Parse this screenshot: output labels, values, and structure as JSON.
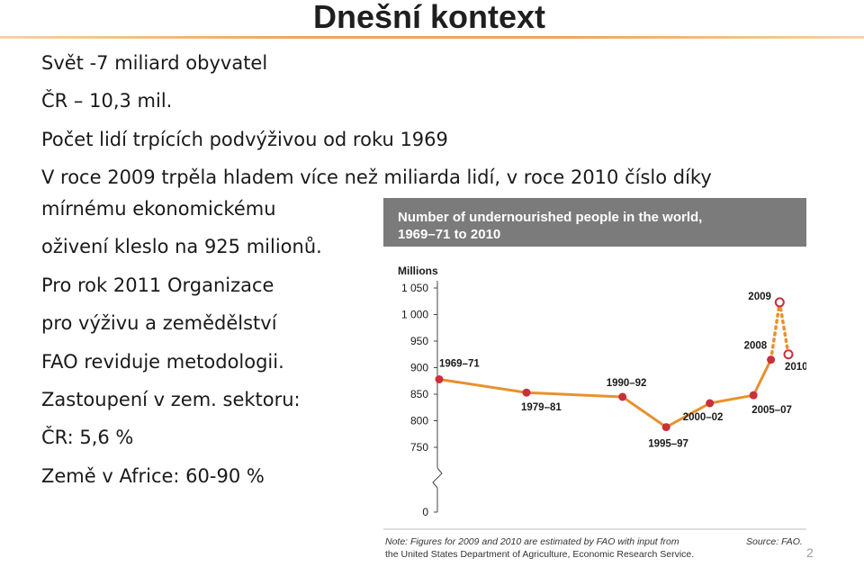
{
  "slide": {
    "title": "Dnešní kontext",
    "lines": [
      "Svět -7 miliard obyvatel",
      "ČR – 10,3 mil.",
      "Počet lidí trpících podvýživou od roku 1969",
      "V roce 2009 trpěla hladem více než miliarda lidí, v roce 2010 číslo díky",
      "mírnému ekonomickému",
      "oživení kleslo na 925 milionů.",
      "Pro rok 2011 Organizace",
      "pro výživu a zemědělství",
      "FAO reviduje metodologii.",
      "Zastoupení v zem. sektoru:",
      "ČR: 5,6 %",
      "Země v Africe: 60-90 %"
    ],
    "page_number": "2"
  },
  "chart_data": {
    "type": "line",
    "title_lines": [
      "Number of undernourished people in the world,",
      "1969–71 to 2010"
    ],
    "ylabel": "Millions",
    "y_ticks": [
      "0",
      "750",
      "800",
      "850",
      "900",
      "950",
      "1 000",
      "1 050"
    ],
    "y_tick_values": [
      0,
      750,
      800,
      850,
      900,
      950,
      1000,
      1050
    ],
    "y_axis_break": true,
    "note": "Note: Figures for 2009 and 2010 are estimated by FAO with input from",
    "note_line2": "the United States Department of Agriculture, Economic Research Service.",
    "source": "Source: FAO.",
    "series": [
      {
        "points": [
          {
            "label": "1969–71",
            "x": 1970,
            "y": 878,
            "estimated": false
          },
          {
            "label": "1979–81",
            "x": 1980,
            "y": 853,
            "estimated": false
          },
          {
            "label": "1990–92",
            "x": 1991,
            "y": 845,
            "estimated": false
          },
          {
            "label": "1995–97",
            "x": 1996,
            "y": 788,
            "estimated": false
          },
          {
            "label": "2000–02",
            "x": 2001,
            "y": 833,
            "estimated": false
          },
          {
            "label": "2005–07",
            "x": 2006,
            "y": 848,
            "estimated": false
          },
          {
            "label": "2008",
            "x": 2008,
            "y": 915,
            "estimated": false
          },
          {
            "label": "2009",
            "x": 2009,
            "y": 1023,
            "estimated": true
          },
          {
            "label": "2010",
            "x": 2010,
            "y": 925,
            "estimated": true
          }
        ]
      }
    ],
    "colors": {
      "line": "#e8912d",
      "marker": "#c8303a",
      "header_bg": "#7b7b7b",
      "header_text": "#ffffff",
      "axis": "#444444"
    }
  }
}
